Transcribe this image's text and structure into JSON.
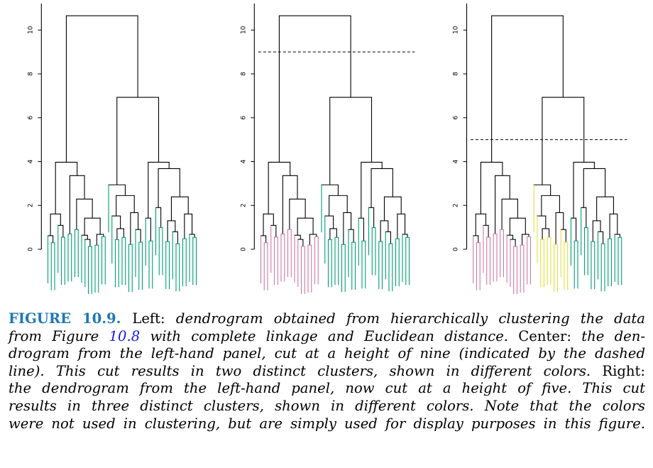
{
  "figure": {
    "label": "FIGURE 10.9.",
    "label_color": "#1f78b4",
    "ref_color": "#1a1adc",
    "caption_lines": [
      [
        {
          "t": "rm",
          "s": "Left: "
        },
        {
          "t": "it",
          "s": "dendrogram obtained from hierarchically clustering the data"
        }
      ],
      [
        {
          "t": "it",
          "s": "from Figure "
        },
        {
          "t": "ref",
          "s": "10.8"
        },
        {
          "t": "it",
          "s": " with complete linkage and Euclidean distance."
        },
        {
          "t": "rm",
          "s": " Center: "
        },
        {
          "t": "it",
          "s": "the den-"
        }
      ],
      [
        {
          "t": "it",
          "s": "drogram from the left-hand panel, cut at a height of nine (indicated by the dashed"
        }
      ],
      [
        {
          "t": "it",
          "s": "line). This cut results in two distinct clusters, shown in different colors."
        },
        {
          "t": "rm",
          "s": " Right:"
        }
      ],
      [
        {
          "t": "it",
          "s": "the dendrogram from the left-hand panel, now cut at a height of five. This cut"
        }
      ],
      [
        {
          "t": "it",
          "s": "results in three distinct clusters, shown in different colors. Note that the colors"
        }
      ],
      [
        {
          "t": "it",
          "s": "were not used in clustering, but are simply used for display purposes in this figure."
        }
      ]
    ]
  },
  "chart_data": {
    "type": "dendrogram",
    "title": "",
    "xlabel": "",
    "ylabel": "",
    "ylim": [
      0,
      10.65
    ],
    "yticks": [
      0,
      2,
      4,
      6,
      8,
      10
    ],
    "hang": 2.17,
    "n_leaves": 45,
    "colors": {
      "green": "#009e73",
      "magenta": "#cc79a7",
      "yellow": "#e3df3c",
      "branch": "#000000"
    },
    "tree": {
      "h": 10.65,
      "c": [
        {
          "id": "A",
          "h": 3.97,
          "c": [
            {
              "h": 1.61,
              "c": [
                {
                  "h": 0.62,
                  "c": [
                    "L",
                    {
                      "h": 0.3,
                      "c": [
                        "L",
                        "L"
                      ]
                    }
                  ]
                },
                {
                  "h": 1.09,
                  "c": [
                    "L",
                    {
                      "h": 0.55,
                      "c": [
                        "L",
                        "L"
                      ]
                    }
                  ]
                }
              ]
            },
            {
              "h": 3.36,
              "c": [
                {
                  "h": 0.7,
                  "c": [
                    "L",
                    "L"
                  ]
                },
                {
                  "h": 2.29,
                  "c": [
                    {
                      "h": 0.9,
                      "c": [
                        "L",
                        "L"
                      ]
                    },
                    {
                      "h": 1.42,
                      "c": [
                        {
                          "h": 0.64,
                          "c": [
                            "L",
                            {
                              "h": 0.45,
                              "c": [
                                "L",
                                {
                                  "h": 0.13,
                                  "c": [
                                    "L",
                                    "L"
                                  ]
                                }
                              ]
                            }
                          ]
                        },
                        {
                          "h": 0.68,
                          "c": [
                            {
                              "h": 0.19,
                              "c": [
                                "L",
                                "L"
                              ]
                            },
                            {
                              "h": 0.57,
                              "c": [
                                "L",
                                "L"
                              ]
                            }
                          ]
                        }
                      ]
                    }
                  ]
                }
              ]
            }
          ]
        },
        {
          "h": 6.93,
          "c": [
            {
              "id": "B",
              "h": 2.94,
              "c": [
                "L",
                {
                  "h": 2.45,
                  "c": [
                    {
                      "h": 1.52,
                      "c": [
                        "L",
                        {
                          "h": 0.94,
                          "c": [
                            {
                              "h": 0.44,
                              "c": [
                                "L",
                                "L"
                              ]
                            },
                            {
                              "h": 0.54,
                              "c": [
                                "L",
                                "L"
                              ]
                            }
                          ]
                        }
                      ]
                    },
                    {
                      "h": 1.67,
                      "c": [
                        {
                          "h": 0.22,
                          "c": [
                            "L",
                            "L"
                          ]
                        },
                        {
                          "h": 0.9,
                          "c": [
                            "L",
                            {
                              "h": 0.32,
                              "c": [
                                "L",
                                "L"
                              ]
                            }
                          ]
                        }
                      ]
                    }
                  ]
                }
              ]
            },
            {
              "id": "C",
              "h": 3.97,
              "c": [
                {
                  "h": 1.42,
                  "c": [
                    "L",
                    {
                      "h": 0.38,
                      "c": [
                        "L",
                        "L"
                      ]
                    }
                  ]
                },
                {
                  "h": 3.68,
                  "c": [
                    {
                      "h": 1.9,
                      "c": [
                        "L",
                        {
                          "h": 0.99,
                          "c": [
                            "L",
                            "L"
                          ]
                        }
                      ]
                    },
                    {
                      "h": 2.39,
                      "c": [
                        {
                          "h": 1.3,
                          "c": [
                            {
                              "h": 0.35,
                              "c": [
                                "L",
                                "L"
                              ]
                            },
                            {
                              "h": 0.8,
                              "c": [
                                "L",
                                {
                                  "h": 0.25,
                                  "c": [
                                    "L",
                                    "L"
                                  ]
                                }
                              ]
                            }
                          ]
                        },
                        {
                          "h": 1.61,
                          "c": [
                            {
                              "h": 0.48,
                              "c": [
                                "L",
                                "L"
                              ]
                            },
                            {
                              "h": 0.68,
                              "c": [
                                "L",
                                {
                                  "h": 0.54,
                                  "c": [
                                    "L",
                                    "L"
                                  ]
                                }
                              ]
                            }
                          ]
                        }
                      ]
                    }
                  ]
                }
              ]
            }
          ]
        }
      ]
    },
    "panels": [
      {
        "name": "left",
        "cut_height": null,
        "cluster_colors": {
          "A": "green",
          "B": "green",
          "C": "green"
        }
      },
      {
        "name": "center",
        "cut_height": 9,
        "cluster_colors": {
          "A": "magenta",
          "B": "green",
          "C": "green"
        }
      },
      {
        "name": "right",
        "cut_height": 5,
        "cluster_colors": {
          "A": "magenta",
          "B": "yellow",
          "C": "green"
        }
      }
    ]
  }
}
